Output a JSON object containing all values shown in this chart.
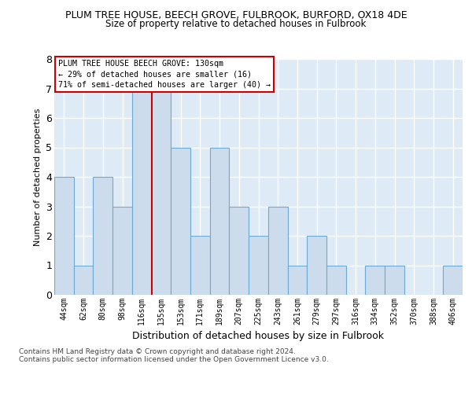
{
  "title": "PLUM TREE HOUSE, BEECH GROVE, FULBROOK, BURFORD, OX18 4DE",
  "subtitle": "Size of property relative to detached houses in Fulbrook",
  "xlabel": "Distribution of detached houses by size in Fulbrook",
  "ylabel": "Number of detached properties",
  "categories": [
    "44sqm",
    "62sqm",
    "80sqm",
    "98sqm",
    "116sqm",
    "135sqm",
    "153sqm",
    "171sqm",
    "189sqm",
    "207sqm",
    "225sqm",
    "243sqm",
    "261sqm",
    "279sqm",
    "297sqm",
    "316sqm",
    "334sqm",
    "352sqm",
    "370sqm",
    "388sqm",
    "406sqm"
  ],
  "values": [
    4,
    1,
    4,
    3,
    7,
    7,
    5,
    2,
    5,
    3,
    2,
    3,
    1,
    2,
    1,
    0,
    1,
    1,
    0,
    0,
    1
  ],
  "bar_color": "#ccdcec",
  "bar_edge_color": "#6aaad4",
  "highlight_line_color": "#cc0000",
  "annotation_text": "PLUM TREE HOUSE BEECH GROVE: 130sqm\n← 29% of detached houses are smaller (16)\n71% of semi-detached houses are larger (40) →",
  "annotation_box_color": "white",
  "annotation_box_edge_color": "#cc0000",
  "ylim": [
    0,
    8
  ],
  "yticks": [
    0,
    1,
    2,
    3,
    4,
    5,
    6,
    7,
    8
  ],
  "footer_text": "Contains HM Land Registry data © Crown copyright and database right 2024.\nContains public sector information licensed under the Open Government Licence v3.0.",
  "plot_background_color": "#deeaf5",
  "grid_color": "white"
}
